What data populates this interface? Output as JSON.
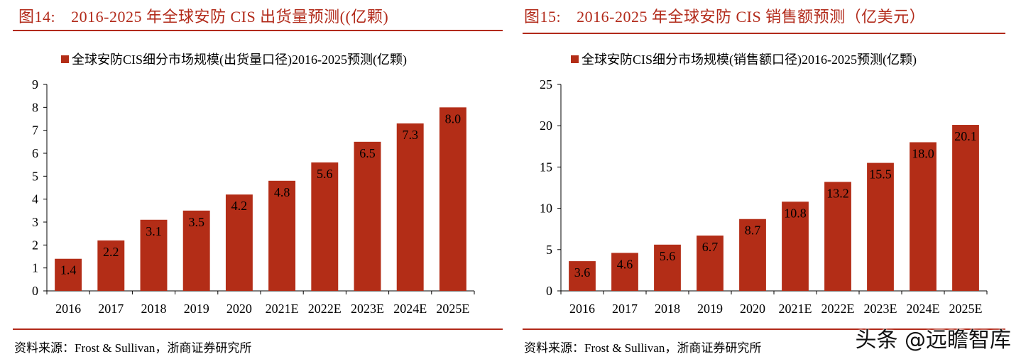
{
  "colors": {
    "accent": "#b22a1a",
    "bar": "#b32d17"
  },
  "left": {
    "figure_no": "图14:",
    "title": "2016-2025 年全球安防 CIS 出货量预测((亿颗)",
    "legend_label": "全球安防CIS细分市场规模(出货量口径)2016-2025预测(亿颗)",
    "source": "资料来源：Frost & Sullivan，浙商证券研究所"
  },
  "right": {
    "figure_no": "图15:",
    "title": "2016-2025 年全球安防 CIS 销售额预测（亿美元）",
    "legend_label": "全球安防CIS细分市场规模(销售额口径)2016-2025预测(亿颗)",
    "source": "资料来源：Frost & Sullivan，浙商证券研究所"
  },
  "watermark": "头条 @远瞻智库",
  "chart_data": [
    {
      "type": "bar",
      "title": "2016-2025 年全球安防 CIS 出货量预测((亿颗)",
      "legend": [
        "全球安防CIS细分市场规模(出货量口径)2016-2025预测(亿颗)"
      ],
      "legend_position": "top",
      "categories": [
        "2016",
        "2017",
        "2018",
        "2019",
        "2020",
        "2021E",
        "2022E",
        "2023E",
        "2024E",
        "2025E"
      ],
      "values": [
        1.4,
        2.2,
        3.1,
        3.5,
        4.2,
        4.8,
        5.6,
        6.5,
        7.3,
        8.0
      ],
      "labels": [
        "1.4",
        "2.2",
        "3.1",
        "3.5",
        "4.2",
        "4.8",
        "5.6",
        "6.5",
        "7.3",
        "8.0"
      ],
      "yticks": [
        "0",
        "1",
        "2",
        "3",
        "4",
        "5",
        "6",
        "7",
        "8",
        "9"
      ],
      "ylim": [
        0,
        9
      ],
      "xlabel": "",
      "ylabel": "",
      "grid": false
    },
    {
      "type": "bar",
      "title": "2016-2025 年全球安防 CIS 销售额预测（亿美元）",
      "legend": [
        "全球安防CIS细分市场规模(销售额口径)2016-2025预测(亿颗)"
      ],
      "legend_position": "top",
      "categories": [
        "2016",
        "2017",
        "2018",
        "2019",
        "2020",
        "2021E",
        "2022E",
        "2023E",
        "2024E",
        "2025E"
      ],
      "values": [
        3.6,
        4.6,
        5.6,
        6.7,
        8.7,
        10.8,
        13.2,
        15.5,
        18.0,
        20.1
      ],
      "labels": [
        "3.6",
        "4.6",
        "5.6",
        "6.7",
        "8.7",
        "10.8",
        "13.2",
        "15.5",
        "18.0",
        "20.1"
      ],
      "yticks": [
        "0",
        "5",
        "10",
        "15",
        "20",
        "25"
      ],
      "ylim": [
        0,
        25
      ],
      "xlabel": "",
      "ylabel": "",
      "grid": false
    }
  ]
}
